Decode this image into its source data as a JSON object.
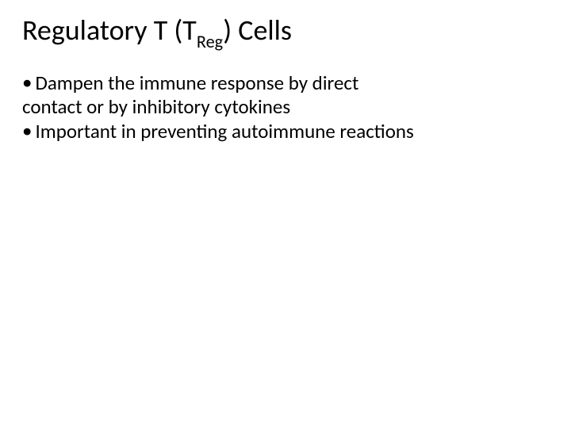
{
  "title": {
    "prefix": "Regulatory T (T",
    "subscript": "Reg",
    "suffix": ") Cells",
    "fontsize": 36,
    "color": "#000000"
  },
  "bullets": [
    {
      "lines": [
        "Dampen the immune response by direct",
        "contact or by inhibitory cytokines"
      ]
    },
    {
      "lines": [
        "Important in preventing autoimmune reactions"
      ]
    }
  ],
  "body_fontsize": 25,
  "body_color": "#000000",
  "bullet_glyph": "•",
  "background_color": "#ffffff",
  "slide_width": 720,
  "slide_height": 540
}
